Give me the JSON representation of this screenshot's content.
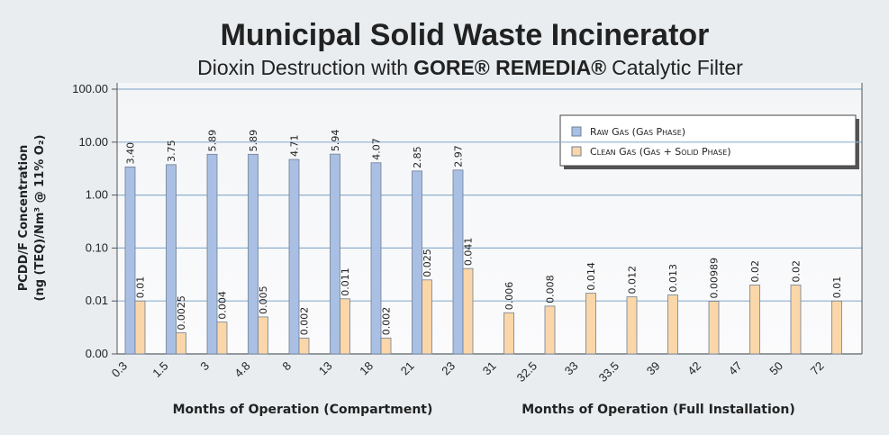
{
  "chart_data": {
    "type": "bar",
    "log_y": true,
    "grid": true,
    "legend": "upper right",
    "title": "Municipal Solid Waste Incinerator",
    "subtitle": [
      "Dioxin Destruction with",
      "GORE® REMEDIA®",
      "Catalytic Filter"
    ],
    "ylabel": [
      "PCDD/F Concentration",
      "(ng (TEQ)/Nm³ @ 11% O₂)"
    ],
    "xlabel": [
      "Months of Operation (Compartment)",
      "Months of Operation (Full Installation)"
    ],
    "categories": [
      "0.3",
      "1.5",
      "3",
      "4.8",
      "8",
      "13",
      "18",
      "21",
      "23",
      "31",
      "32.5",
      "33",
      "33.5",
      "39",
      "42",
      "47",
      "50",
      "72"
    ],
    "ylim": [
      0.001,
      100
    ],
    "yticks": [
      {
        "value": 0.001,
        "label": "0.00"
      },
      {
        "value": 0.01,
        "label": "0.01"
      },
      {
        "value": 0.1,
        "label": "0.10"
      },
      {
        "value": 1,
        "label": "1.00"
      },
      {
        "value": 10,
        "label": "10.00"
      },
      {
        "value": 100,
        "label": "100.00"
      }
    ],
    "series": [
      {
        "name": "Raw Gas (Gas Phase)",
        "color": "#a9bfe3",
        "values": [
          3.4,
          3.75,
          5.89,
          5.89,
          4.71,
          5.94,
          4.07,
          2.85,
          2.97,
          null,
          null,
          null,
          null,
          null,
          null,
          null,
          null,
          null
        ],
        "value_labels": [
          "3.40",
          "3.75",
          "5.89",
          "5.89",
          "4.71",
          "5.94",
          "4.07",
          "2.85",
          "2.97",
          null,
          null,
          null,
          null,
          null,
          null,
          null,
          null,
          null
        ]
      },
      {
        "name": "Clean Gas (Gas + Solid Phase)",
        "color": "#fad6a8",
        "values": [
          0.01,
          0.0025,
          0.004,
          0.005,
          0.002,
          0.011,
          0.002,
          0.025,
          0.041,
          0.006,
          0.008,
          0.014,
          0.012,
          0.013,
          0.00989,
          0.02,
          0.02,
          0.01
        ]
      }
    ]
  }
}
